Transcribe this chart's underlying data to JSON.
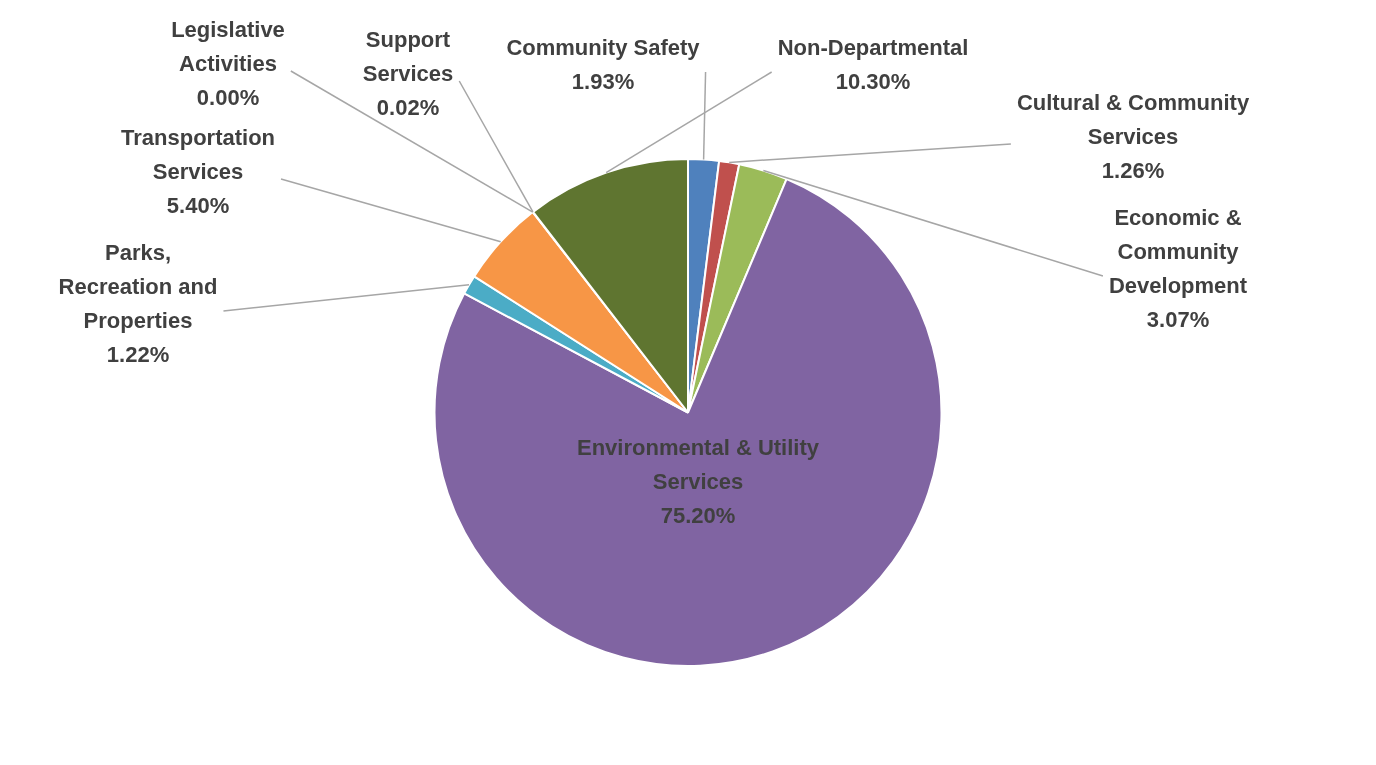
{
  "chart_data": {
    "type": "pie",
    "categories": [
      "Community Safety",
      "Cultural & Community Services",
      "Economic & Community Development",
      "Environmental & Utility Services",
      "Parks, Recreation and Properties",
      "Transportation Services",
      "Legislative Activities",
      "Support Services",
      "Non-Departmental"
    ],
    "values": [
      1.93,
      1.26,
      3.07,
      75.2,
      1.22,
      5.4,
      0,
      0.02,
      10.3
    ],
    "colors": [
      "#4f81bd",
      "#c0504d",
      "#9bbb59",
      "#8064a2",
      "#4bacc6",
      "#f79646",
      "#1f4e5f",
      "#2c4d75",
      "#5f7530"
    ],
    "value_labels": [
      "1.93%",
      "1.26%",
      "3.07%",
      "75.20%",
      "1.22%",
      "5.40%",
      "0.00%",
      "0.02%",
      "10.30%"
    ],
    "legend": false
  }
}
